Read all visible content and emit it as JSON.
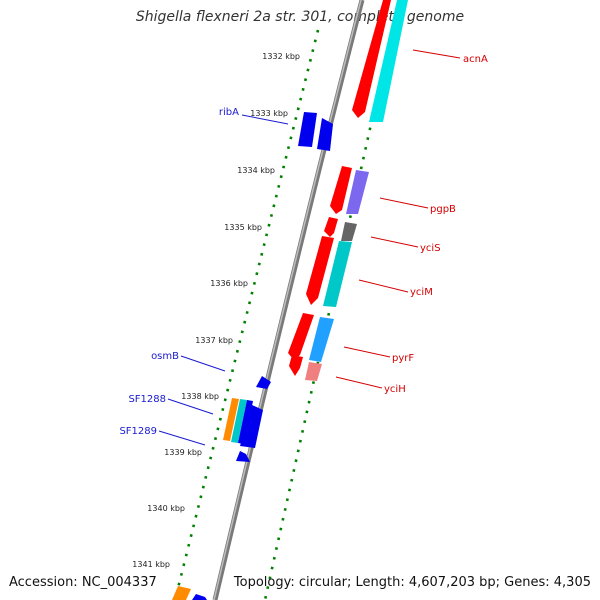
{
  "title": "Shigella flexneri 2a str. 301, complete genome",
  "accession": "Accession: NC_004337",
  "stats": "Topology: circular; Length: 4,607,203 bp; Genes: 4,305",
  "ticks": [
    "1332 kbp",
    "1333 kbp",
    "1334 kbp",
    "1335 kbp",
    "1336 kbp",
    "1337 kbp",
    "1338 kbp",
    "1339 kbp",
    "1340 kbp",
    "1341 kbp"
  ],
  "genes_reverse": [
    "acnA",
    "pgpB",
    "yciS",
    "yciM",
    "pyrF",
    "yciH"
  ],
  "genes_forward": [
    "ribA",
    "osmB",
    "SF1288",
    "SF1289"
  ],
  "colors": {
    "cds_red": "#ff0000",
    "blast_cyan": "#00e5e5",
    "blast_blue": "#20a0ff",
    "gene_blue": "#0000ee",
    "purple": "#7b68ee",
    "grey": "#666666",
    "pink": "#f08080",
    "orange": "#ff8c00",
    "backbone": "#808080",
    "dots": "#008000"
  }
}
